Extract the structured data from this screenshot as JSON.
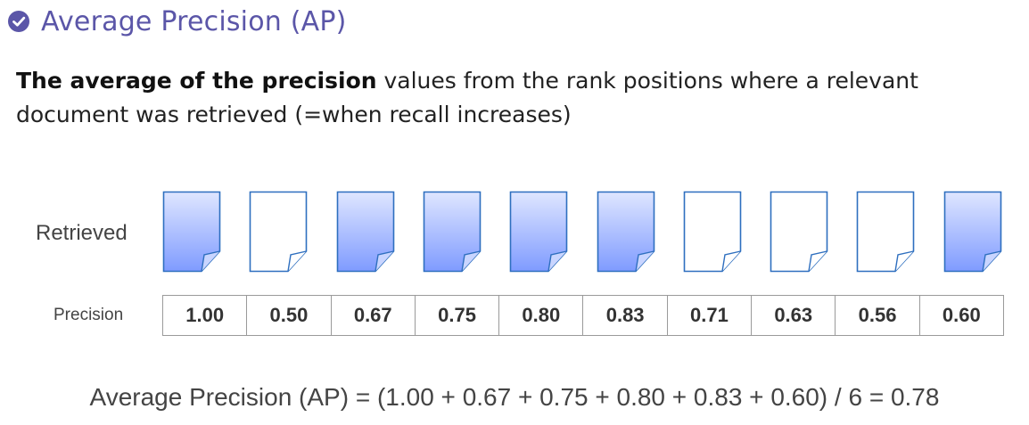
{
  "header": {
    "title": "Average Precision (AP)",
    "icon": "check-circle-icon",
    "accent_color": "#5b56a8"
  },
  "description": {
    "bold": "The average of the precision",
    "rest_line1": " values from the rank positions where a relevant",
    "line2": "document was retrieved (=when recall increases)"
  },
  "retrieved": {
    "label": "Retrieved",
    "documents": [
      {
        "relevant": true
      },
      {
        "relevant": false
      },
      {
        "relevant": true
      },
      {
        "relevant": true
      },
      {
        "relevant": true
      },
      {
        "relevant": true
      },
      {
        "relevant": false
      },
      {
        "relevant": false
      },
      {
        "relevant": false
      },
      {
        "relevant": true
      }
    ],
    "relevant_fill_top": "#dfe6ff",
    "relevant_fill_bottom": "#7f9bff",
    "doc_stroke": "#2e6fbf"
  },
  "precision": {
    "label": "Precision",
    "values": [
      "1.00",
      "0.50",
      "0.67",
      "0.75",
      "0.80",
      "0.83",
      "0.71",
      "0.63",
      "0.56",
      "0.60"
    ]
  },
  "formula": "Average Precision (AP) = (1.00 + 0.67 + 0.75 + 0.80 + 0.83 + 0.60) / 6 = 0.78"
}
